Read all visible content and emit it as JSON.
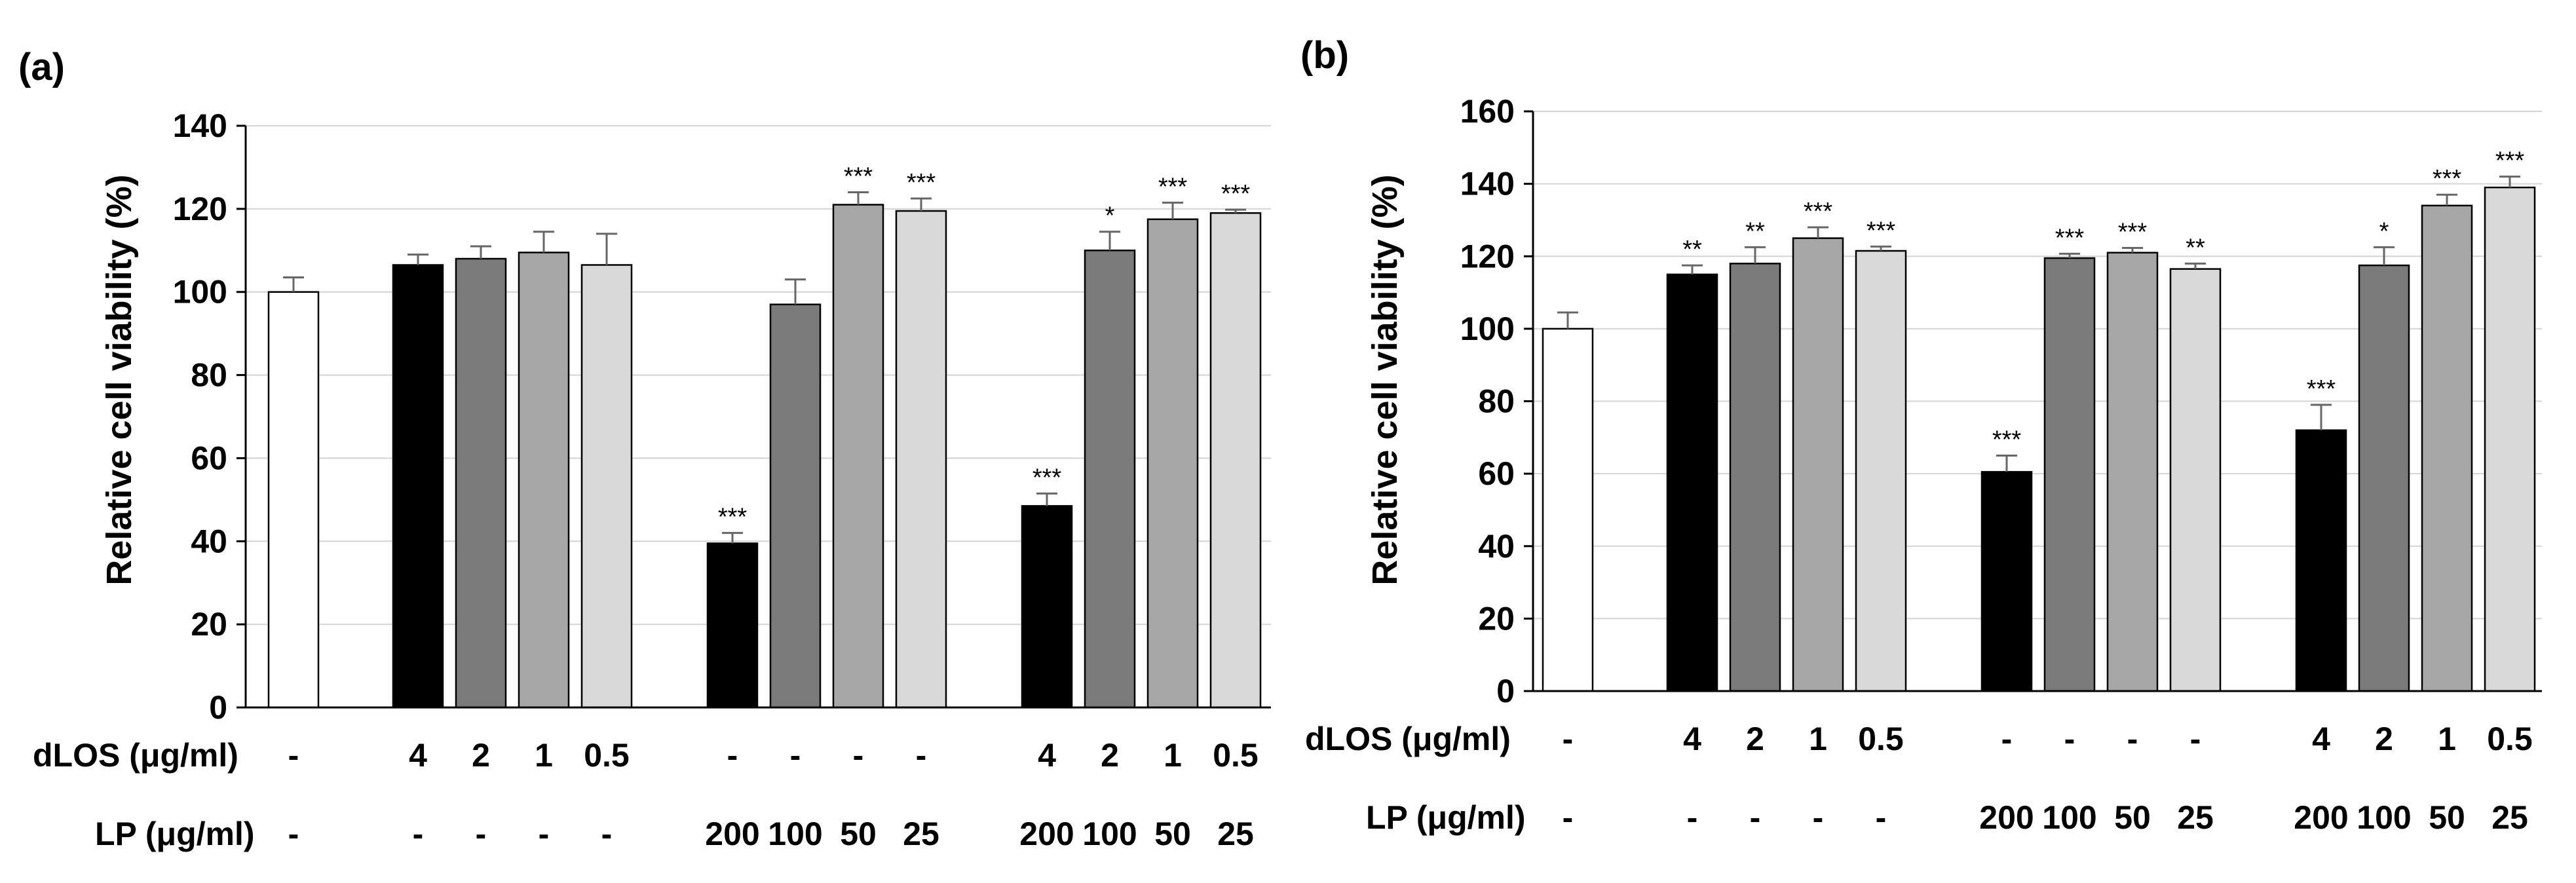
{
  "panels": [
    {
      "label": "(a)",
      "ylabel": "Relative cell viability (%)",
      "dlos_label": "dLOS (μg/ml)",
      "lp_label": "LP (μg/ml)"
    },
    {
      "label": "(b)",
      "ylabel": "Relative cell viability (%)",
      "dlos_label": "dLOS (μg/ml)",
      "lp_label": "LP (μg/ml)"
    }
  ],
  "colors": {
    "white": "#ffffff",
    "black": "#000000",
    "dark_gray": "#7a7a7a",
    "mid_gray": "#a6a6a6",
    "light_gray": "#d9d9d9"
  },
  "chart_data": [
    {
      "type": "bar",
      "title": "(a)",
      "xlabel": "",
      "ylabel": "Relative cell viability (%)",
      "ylim": [
        0,
        140
      ],
      "yticks": [
        0,
        20,
        40,
        60,
        80,
        100,
        120,
        140
      ],
      "grid": true,
      "groups": [
        {
          "dlos": [
            "-"
          ],
          "lp": [
            "-"
          ],
          "values": [
            100
          ],
          "errors": [
            3.5
          ],
          "sig": [
            ""
          ],
          "colors": [
            "white"
          ]
        },
        {
          "dlos": [
            "4",
            "2",
            "1",
            "0.5"
          ],
          "lp": [
            "-",
            "-",
            "-",
            "-"
          ],
          "values": [
            106.5,
            108,
            109.5,
            106.5
          ],
          "errors": [
            2.5,
            3,
            5,
            7.5
          ],
          "sig": [
            "",
            "",
            "",
            ""
          ],
          "colors": [
            "black",
            "dark_gray",
            "mid_gray",
            "light_gray"
          ]
        },
        {
          "dlos": [
            "-",
            "-",
            "-",
            "-"
          ],
          "lp": [
            "200",
            "100",
            "50",
            "25"
          ],
          "values": [
            39.5,
            97,
            121,
            119.5
          ],
          "errors": [
            2.5,
            6,
            3,
            3
          ],
          "sig": [
            "***",
            "",
            "***",
            "***"
          ],
          "colors": [
            "black",
            "dark_gray",
            "mid_gray",
            "light_gray"
          ]
        },
        {
          "dlos": [
            "4",
            "2",
            "1",
            "0.5"
          ],
          "lp": [
            "200",
            "100",
            "50",
            "25"
          ],
          "values": [
            48.5,
            110,
            117.5,
            119
          ],
          "errors": [
            3,
            4.5,
            4,
            0.8
          ],
          "sig": [
            "***",
            "*",
            "***",
            "***"
          ],
          "colors": [
            "black",
            "dark_gray",
            "mid_gray",
            "light_gray"
          ]
        }
      ]
    },
    {
      "type": "bar",
      "title": "(b)",
      "xlabel": "",
      "ylabel": "Relative cell viability (%)",
      "ylim": [
        0,
        160
      ],
      "yticks": [
        0,
        20,
        40,
        60,
        80,
        100,
        120,
        140,
        160
      ],
      "grid": true,
      "groups": [
        {
          "dlos": [
            "-"
          ],
          "lp": [
            "-"
          ],
          "values": [
            100
          ],
          "errors": [
            4.5
          ],
          "sig": [
            ""
          ],
          "colors": [
            "white"
          ]
        },
        {
          "dlos": [
            "4",
            "2",
            "1",
            "0.5"
          ],
          "lp": [
            "-",
            "-",
            "-",
            "-"
          ],
          "values": [
            115,
            118,
            125,
            121.5
          ],
          "errors": [
            2.5,
            4.5,
            3,
            1.2
          ],
          "sig": [
            "**",
            "**",
            "***",
            "***"
          ],
          "colors": [
            "black",
            "dark_gray",
            "mid_gray",
            "light_gray"
          ]
        },
        {
          "dlos": [
            "-",
            "-",
            "-",
            "-"
          ],
          "lp": [
            "200",
            "100",
            "50",
            "25"
          ],
          "values": [
            60.5,
            119.5,
            121,
            116.5
          ],
          "errors": [
            4.5,
            1.2,
            1.3,
            1.5
          ],
          "sig": [
            "***",
            "***",
            "***",
            "**"
          ],
          "colors": [
            "black",
            "dark_gray",
            "mid_gray",
            "light_gray"
          ]
        },
        {
          "dlos": [
            "4",
            "2",
            "1",
            "0.5"
          ],
          "lp": [
            "200",
            "100",
            "50",
            "25"
          ],
          "values": [
            72,
            117.5,
            134,
            139
          ],
          "errors": [
            7,
            5,
            3,
            3
          ],
          "sig": [
            "***",
            "*",
            "***",
            "***"
          ],
          "colors": [
            "black",
            "dark_gray",
            "mid_gray",
            "light_gray"
          ]
        }
      ]
    }
  ]
}
